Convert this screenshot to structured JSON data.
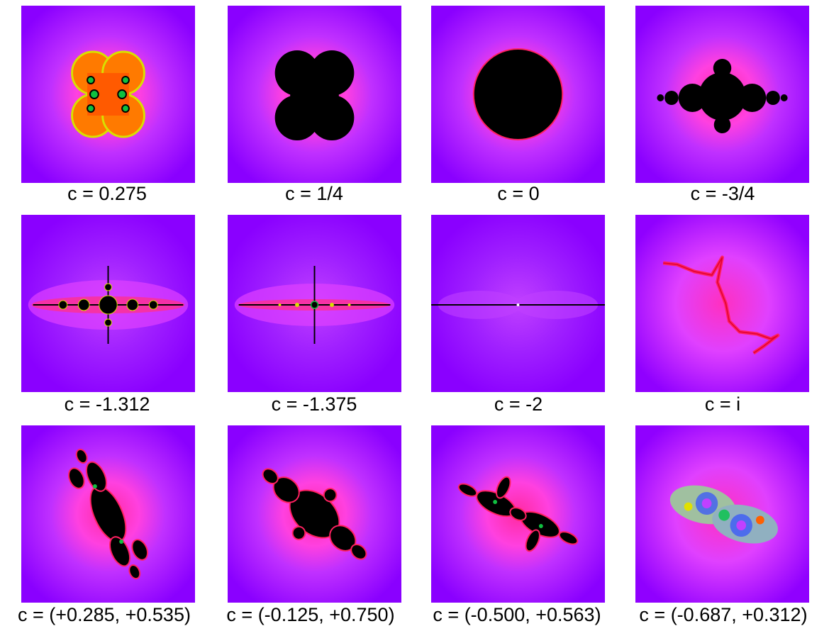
{
  "panels": [
    {
      "caption": "c = 0.275"
    },
    {
      "caption": "c = 1/4"
    },
    {
      "caption": "c = 0"
    },
    {
      "caption": "c = -3/4"
    },
    {
      "caption": "c = -1.312"
    },
    {
      "caption": "c = -1.375"
    },
    {
      "caption": "c = -2"
    },
    {
      "caption": "c = i"
    },
    {
      "caption": "c = (+0.285, +0.535)"
    },
    {
      "caption": "c = (-0.125, +0.750)"
    },
    {
      "caption": "c = (-0.500, +0.563)"
    },
    {
      "caption": "c = (-0.687, +0.312)"
    }
  ]
}
